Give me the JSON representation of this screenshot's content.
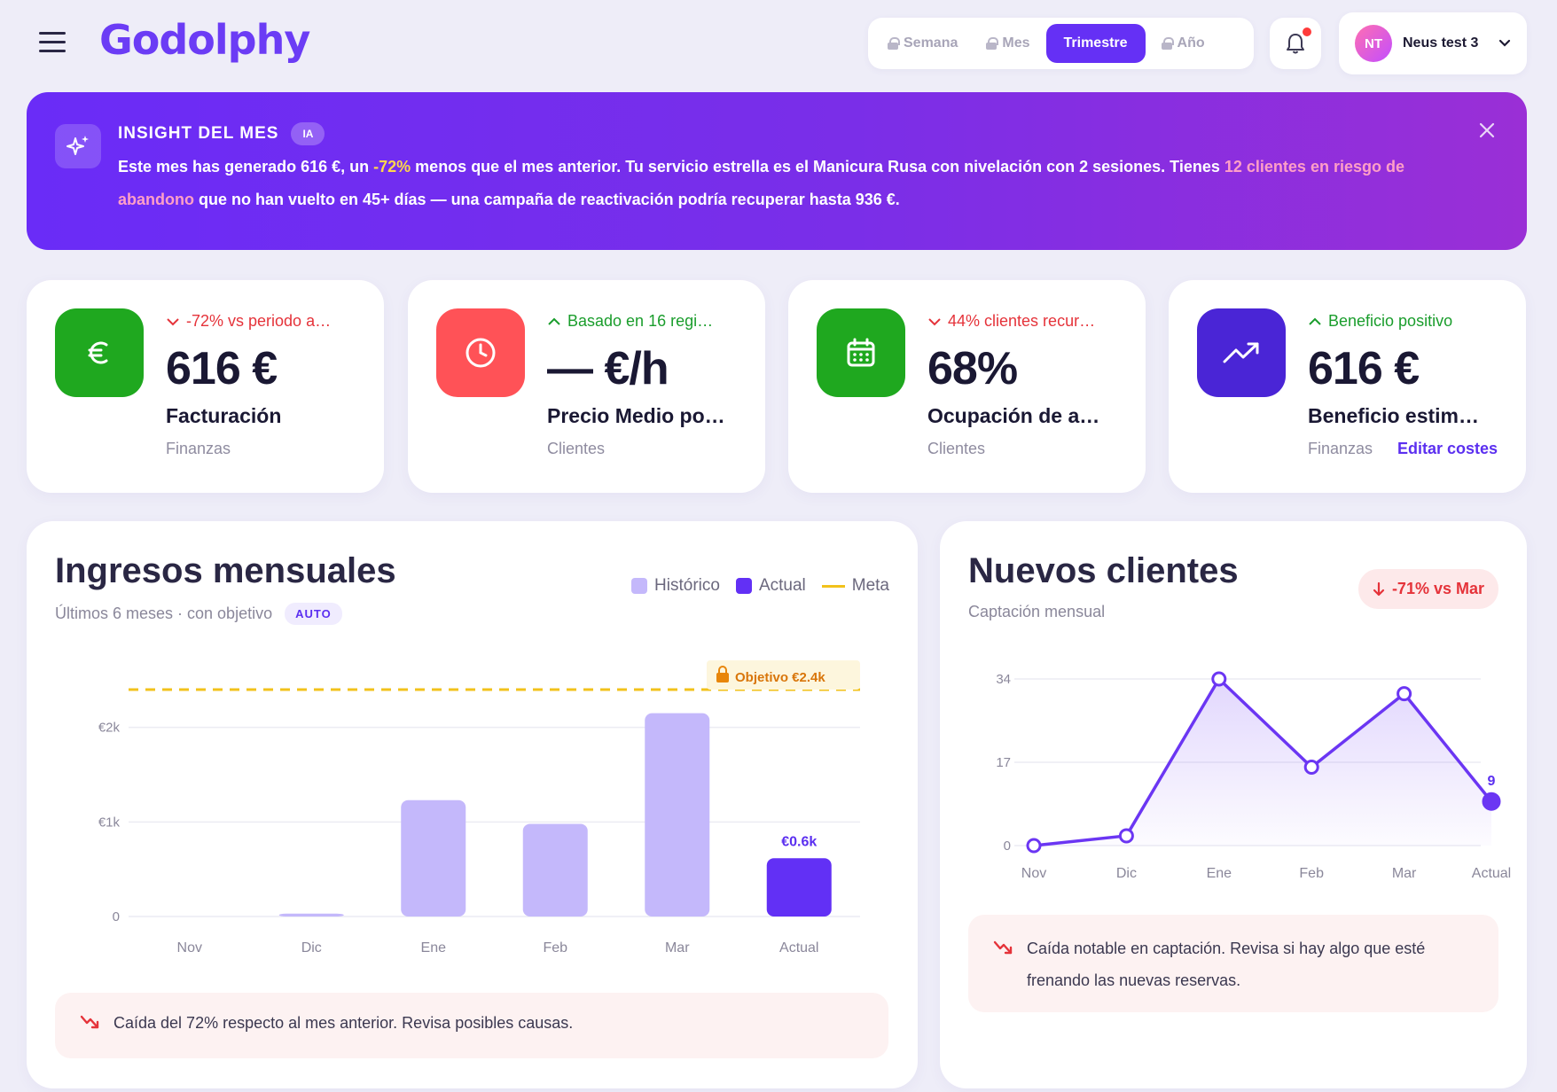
{
  "header": {
    "brand": "Godolphy",
    "periods": [
      {
        "label": "Semana",
        "locked": true,
        "active": false
      },
      {
        "label": "Mes",
        "locked": true,
        "active": false
      },
      {
        "label": "Trimestre",
        "locked": false,
        "active": true
      },
      {
        "label": "Año",
        "locked": true,
        "active": false
      }
    ],
    "user": {
      "initials": "NT",
      "name": "Neus test 3"
    }
  },
  "insight": {
    "title": "INSIGHT DEL MES",
    "badge": "IA",
    "text_parts": [
      "Este mes has generado ",
      "616 €",
      ", un ",
      "-72%",
      " menos que el mes anterior. Tu servicio estrella es el ",
      "Manicura Rusa con nivelación",
      " con 2 sesiones. Tienes ",
      "12 clientes en riesgo de abandono",
      " que no han vuelto en 45+ días — una campaña de reactivación podría recuperar hasta ",
      "936 €",
      "."
    ]
  },
  "kpis": [
    {
      "trend": "-72% vs periodo a…",
      "trend_dir": "down",
      "value": "616 €",
      "label": "Facturación",
      "category": "Finanzas",
      "icon": "euro-icon",
      "color": "#1fa81f"
    },
    {
      "trend": "Basado en 16 regi…",
      "trend_dir": "up",
      "value": "— €/h",
      "label": "Precio Medio po…",
      "category": "Clientes",
      "icon": "clock-icon",
      "color": "#ff5257"
    },
    {
      "trend": "44% clientes recur…",
      "trend_dir": "down",
      "value": "68%",
      "label": "Ocupación de a…",
      "category": "Clientes",
      "icon": "calendar-icon",
      "color": "#1fa81f"
    },
    {
      "trend": "Beneficio positivo",
      "trend_dir": "up",
      "value": "616 €",
      "label": "Beneficio estim…",
      "category": "Finanzas",
      "link": "Editar costes",
      "icon": "trending-up-icon",
      "color": "#4a25d6"
    }
  ],
  "revenue": {
    "title": "Ingresos mensuales",
    "subtitle": "Últimos 6 meses · con objetivo",
    "badge": "AUTO",
    "legend": {
      "historic": "Histórico",
      "actual": "Actual",
      "goal": "Meta"
    },
    "goal_label": "Objetivo €2.4k",
    "actual_label": "€0.6k",
    "alert": "Caída del 72% respecto al mes anterior. Revisa posibles causas."
  },
  "clients": {
    "title": "Nuevos clientes",
    "subtitle": "Captación mensual",
    "delta": "-71% vs Mar",
    "end_label": "9",
    "alert": "Caída notable en captación. Revisa si hay algo que esté frenando las nuevas reservas."
  },
  "chart_data": [
    {
      "type": "bar",
      "title": "Ingresos mensuales",
      "categories": [
        "Nov",
        "Dic",
        "Ene",
        "Feb",
        "Mar",
        "Actual"
      ],
      "series": [
        {
          "name": "Histórico",
          "values": [
            0,
            30,
            1230,
            980,
            2150,
            null
          ]
        },
        {
          "name": "Actual",
          "values": [
            null,
            null,
            null,
            null,
            null,
            616
          ]
        }
      ],
      "goal": 2400,
      "y_ticks": [
        {
          "v": 0,
          "label": "0"
        },
        {
          "v": 1000,
          "label": "€1k"
        },
        {
          "v": 2000,
          "label": "€2k"
        }
      ],
      "ylim": [
        0,
        2400
      ],
      "colors": {
        "historic": "#c4b8fb",
        "actual": "#6230f5",
        "goal": "#f2c21b"
      }
    },
    {
      "type": "line",
      "title": "Nuevos clientes",
      "categories": [
        "Nov",
        "Dic",
        "Ene",
        "Feb",
        "Mar",
        "Actual"
      ],
      "values": [
        0,
        2,
        34,
        16,
        31,
        9
      ],
      "y_ticks": [
        0,
        17,
        34
      ],
      "ylim": [
        0,
        34
      ],
      "color": "#6b36f3"
    }
  ]
}
